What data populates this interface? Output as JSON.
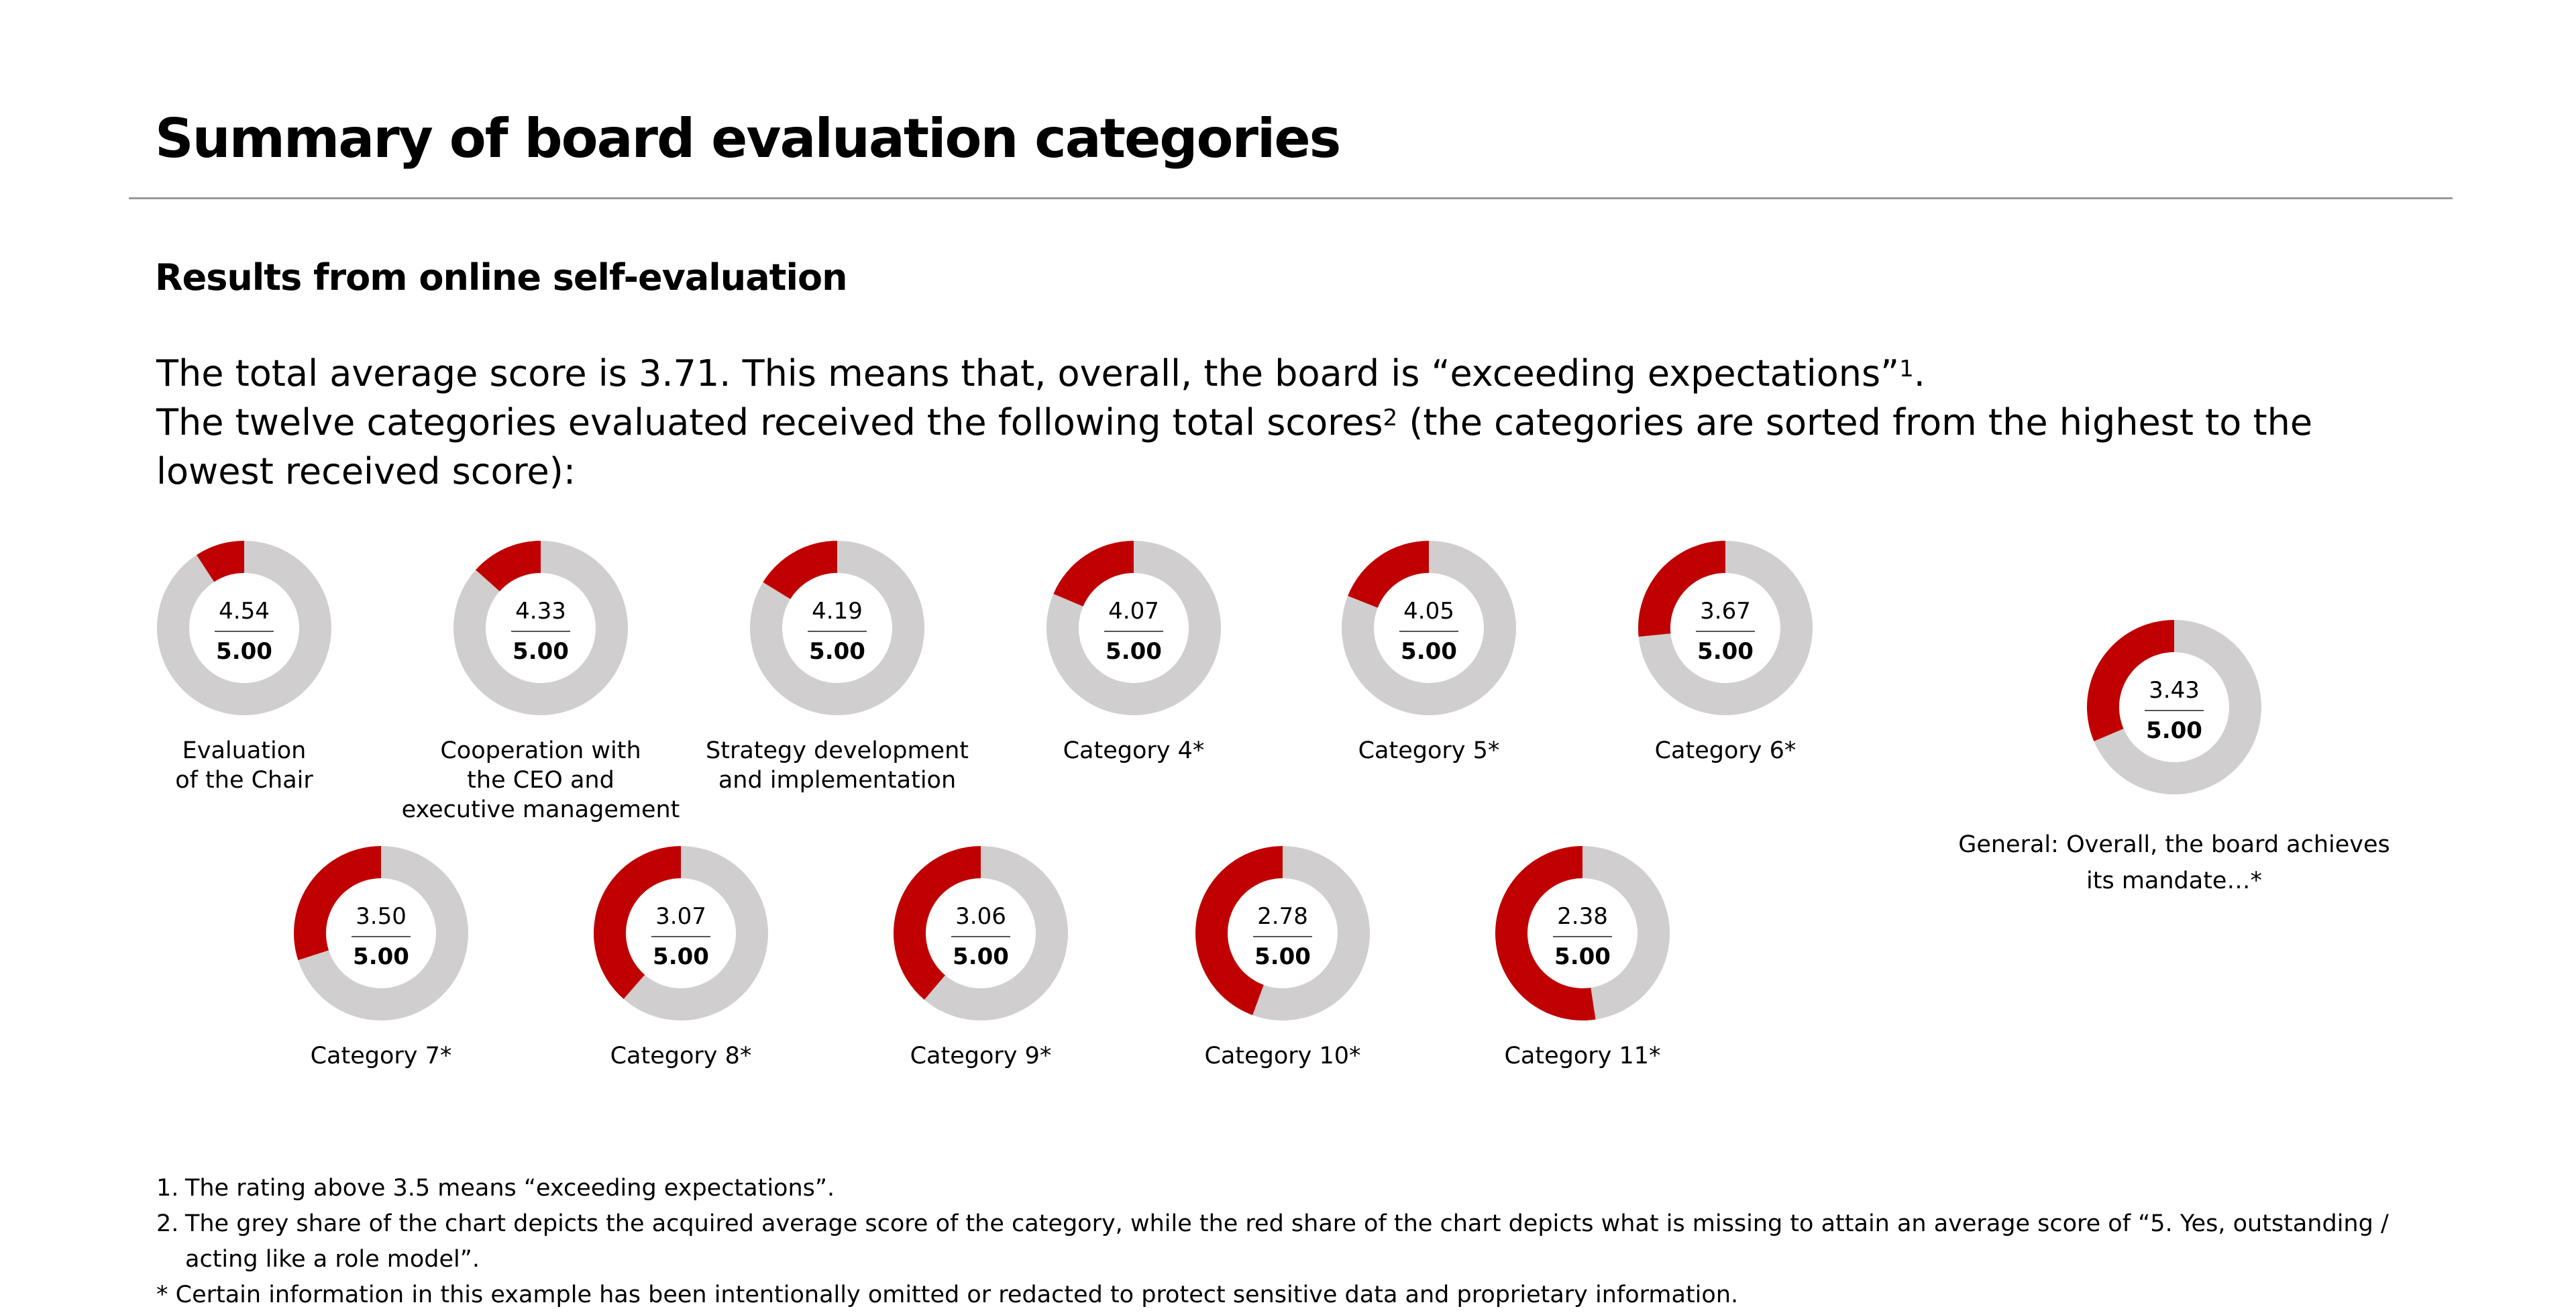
{
  "header": {
    "title": "Summary of board evaluation categories",
    "subtitle": "Results from online self-evaluation"
  },
  "intro": [
    [
      "The total average score is 3.71. This means that, overall, the board is “exceeding expectations”",
      "1",
      "."
    ],
    [
      "The twelve categories evaluated received the following total scores",
      "2",
      " (the categories are sorted from the highest to the lowest received score):"
    ]
  ],
  "max": {
    "value": 5,
    "label": "5.00"
  },
  "colors": {
    "score": "#d0cece",
    "missing": "#c00000"
  },
  "donuts": [
    {
      "score": 4.54,
      "label": [
        "Evaluation",
        "of the Chair"
      ]
    },
    {
      "score": 4.33,
      "label": [
        "Cooperation with",
        "the CEO and",
        "executive management"
      ]
    },
    {
      "score": 4.19,
      "label": [
        "Strategy development",
        "and implementation"
      ]
    },
    {
      "score": 4.07,
      "label": [
        "Category 4*"
      ]
    },
    {
      "score": 4.05,
      "label": [
        "Category 5*"
      ]
    },
    {
      "score": 3.67,
      "label": [
        "Category 6*"
      ]
    },
    {
      "score": 3.5,
      "value_label": "3.50",
      "label": [
        "Category 7*"
      ]
    },
    {
      "score": 3.07,
      "label": [
        "Category 8*"
      ]
    },
    {
      "score": 3.06,
      "label": [
        "Category 9*"
      ]
    },
    {
      "score": 2.78,
      "label": [
        "Category 10*"
      ]
    },
    {
      "score": 2.38,
      "label": [
        "Category 11*"
      ]
    },
    {
      "score": 3.43,
      "label": [
        "General: Overall, the board achieves",
        "its mandate…*"
      ]
    }
  ],
  "footnotes": [
    {
      "marker": "1.",
      "text": "The rating above 3.5 means “exceeding expectations”."
    },
    {
      "marker": "2.",
      "text": "The grey share of the chart depicts the acquired average score of the category, while the red share of the chart depicts what is missing to attain an average score of “5. Yes, outstanding / acting like a role model”."
    }
  ],
  "note": "* Certain information in this example has been intentionally omitted or redacted to protect sensitive data and proprietary information."
}
